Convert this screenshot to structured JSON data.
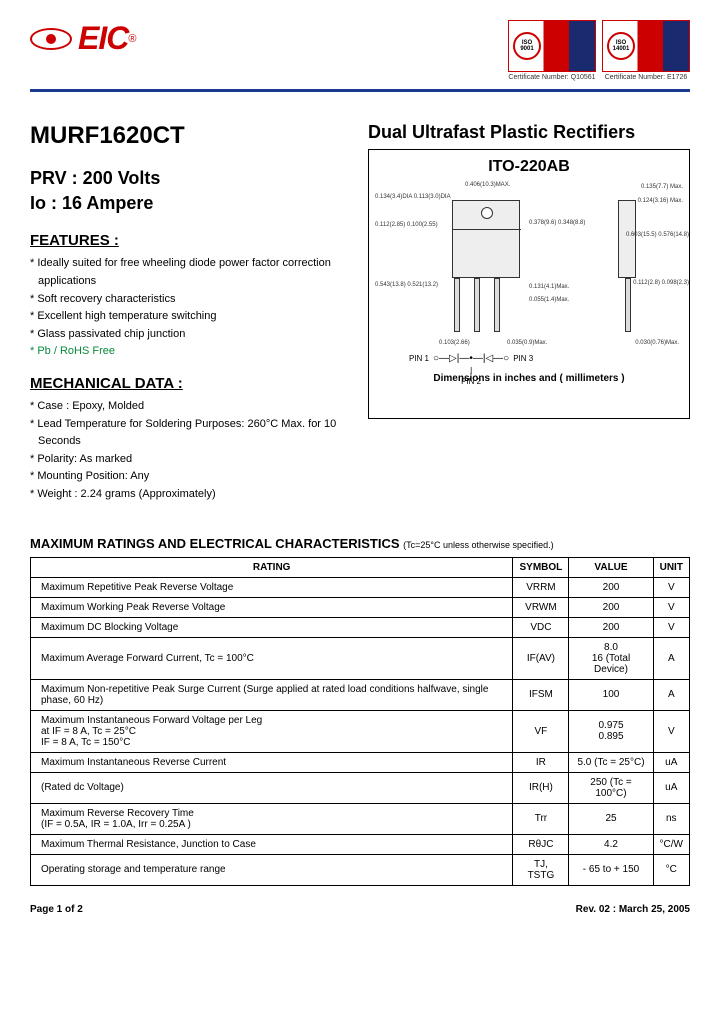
{
  "logo": {
    "text": "EIC",
    "reg": "®"
  },
  "certs": [
    {
      "iso": "ISO",
      "num": "9001",
      "caption": "Certificate Number: Q10561"
    },
    {
      "iso": "ISO",
      "num": "14001",
      "caption": "Certificate Number: E1726"
    }
  ],
  "part_number": "MURF1620CT",
  "product_title": "Dual Ultrafast Plastic Rectifiers",
  "specs": {
    "prv": "PRV : 200 Volts",
    "io": "Io : 16 Ampere"
  },
  "features": {
    "heading": "FEATURES :",
    "items": [
      "Ideally suited for free wheeling diode power factor correction applications",
      "Soft recovery characteristics",
      "Excellent high temperature switching",
      "Glass passivated chip junction",
      "Pb / RoHS Free"
    ]
  },
  "mechanical": {
    "heading": "MECHANICAL  DATA :",
    "items": [
      "Case : Epoxy, Molded",
      "Lead Temperature for Soldering Purposes: 260°C Max. for 10 Seconds",
      "Polarity: As marked",
      "Mounting Position: Any",
      "Weight : 2.24 grams (Approximately)"
    ]
  },
  "package": {
    "name": "ITO-220AB",
    "caption": "Dimensions in inches and ( millimeters )",
    "dims": {
      "d1": "0.134(3.4)DIA\n0.113(3.0)DIA",
      "d2": "0.112(2.85)\n0.100(2.55)",
      "d3": "0.406(10.3)MAX.",
      "d4": "0.378(9.6)\n0.348(8.8)",
      "d5": "0.135(7.7) Max.",
      "d6": "0.124(3.16) Max.",
      "d7": "0.603(15.5)\n0.576(14.8)",
      "d8": "0.543(13.8)\n0.521(13.2)",
      "d9": "0.131(4.1)Max.",
      "d10": "0.055(1.4)Max.",
      "d11": "0.112(2.8)\n0.098(2.3)",
      "d12": "0.103(2.66)",
      "d13": "0.035(0.9)Max.",
      "d14": "0.030(0.76)Max."
    },
    "pins": {
      "p1": "PIN 1",
      "p2": "PIN 2",
      "p3": "PIN 3"
    }
  },
  "table": {
    "title": "MAXIMUM  RATINGS AND ELECTRICAL CHARACTERISTICS",
    "note": "(Tc=25°C unless otherwise specified.)",
    "headers": [
      "RATING",
      "SYMBOL",
      "VALUE",
      "UNIT"
    ],
    "rows": [
      {
        "rating": "Maximum Repetitive Peak Reverse Voltage",
        "symbol": "VRRM",
        "value": "200",
        "unit": "V"
      },
      {
        "rating": "Maximum Working Peak Reverse Voltage",
        "symbol": "VRWM",
        "value": "200",
        "unit": "V"
      },
      {
        "rating": "Maximum DC Blocking Voltage",
        "symbol": "VDC",
        "value": "200",
        "unit": "V"
      },
      {
        "rating": "Maximum Average Forward Current, Tc = 100°C",
        "symbol": "IF(AV)",
        "value": "8.0\n16 (Total Device)",
        "unit": "A"
      },
      {
        "rating": "Maximum Non-repetitive Peak Surge Current (Surge applied at rated load conditions halfwave, single phase, 60 Hz)",
        "symbol": "IFSM",
        "value": "100",
        "unit": "A"
      },
      {
        "rating": "Maximum Instantaneous Forward Voltage per Leg\n  at IF = 8 A,   Tc = 25°C\n       IF = 8 A,   Tc = 150°C",
        "symbol": "VF",
        "value": "0.975\n0.895",
        "unit": "V"
      },
      {
        "rating": "Maximum Instantaneous Reverse Current",
        "symbol": "IR",
        "value": "5.0  (Tc = 25°C)",
        "unit": "uA"
      },
      {
        "rating": "(Rated dc Voltage)",
        "symbol": "IR(H)",
        "value": "250  (Tc = 100°C)",
        "unit": "uA"
      },
      {
        "rating": "Maximum Reverse Recovery Time\n(IF = 0.5A, IR = 1.0A, Irr = 0.25A )",
        "symbol": "Trr",
        "value": "25",
        "unit": "ns"
      },
      {
        "rating": "Maximum Thermal Resistance, Junction to Case",
        "symbol": "RθJC",
        "value": "4.2",
        "unit": "°C/W"
      },
      {
        "rating": "Operating storage and temperature range",
        "symbol": "TJ, TSTG",
        "value": "- 65 to + 150",
        "unit": "°C"
      }
    ]
  },
  "footer": {
    "page": "Page 1 of 2",
    "rev": "Rev. 02 : March 25, 2005"
  }
}
